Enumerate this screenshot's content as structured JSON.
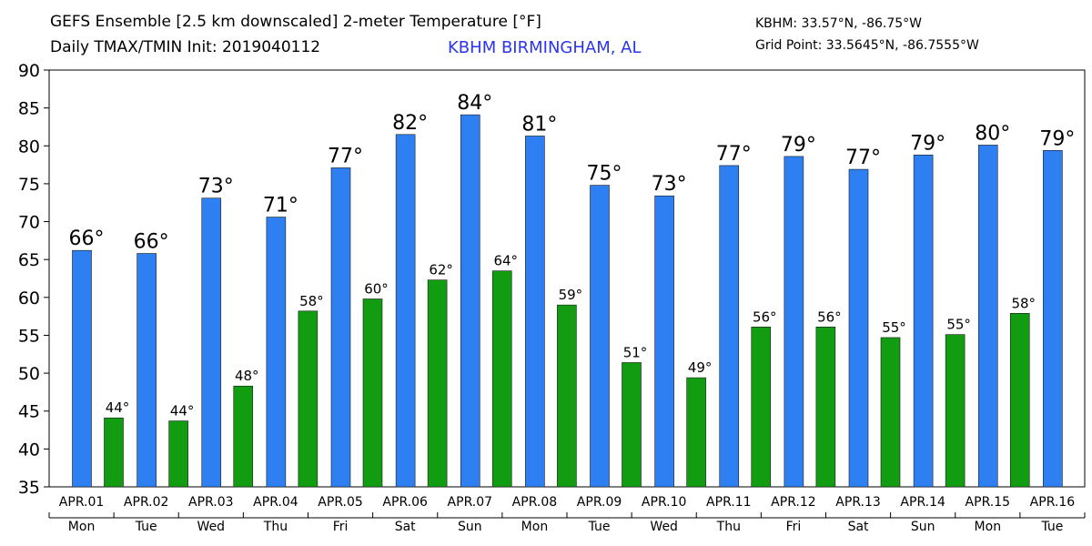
{
  "header": {
    "title_line1": "GEFS Ensemble [2.5 km downscaled] 2-meter Temperature [°F]",
    "title_line2": "Daily TMAX/TMIN Init: 2019040112",
    "station": "KBHM BIRMINGHAM, AL",
    "station_coords": "KBHM: 33.57°N, -86.75°W",
    "grid_point": "Grid Point: 33.5645°N, -86.7555°W"
  },
  "chart_data": {
    "type": "bar",
    "categories": [
      "APR.01",
      "APR.02",
      "APR.03",
      "APR.04",
      "APR.05",
      "APR.06",
      "APR.07",
      "APR.08",
      "APR.09",
      "APR.10",
      "APR.11",
      "APR.12",
      "APR.13",
      "APR.14",
      "APR.15",
      "APR.16"
    ],
    "weekdays": [
      "Mon",
      "Tue",
      "Wed",
      "Thu",
      "Fri",
      "Sat",
      "Sun",
      "Mon",
      "Tue",
      "Wed",
      "Thu",
      "Fri",
      "Sat",
      "Sun",
      "Mon",
      "Tue"
    ],
    "series": [
      {
        "key": "tmax",
        "color": "#2e7ff2",
        "values": [
          66.2,
          65.8,
          73.1,
          70.6,
          77.1,
          81.5,
          84.1,
          81.3,
          74.8,
          73.4,
          77.4,
          78.6,
          76.9,
          78.8,
          80.1,
          79.4
        ],
        "labels": [
          "66°",
          "66°",
          "73°",
          "71°",
          "77°",
          "82°",
          "84°",
          "81°",
          "75°",
          "73°",
          "77°",
          "79°",
          "77°",
          "79°",
          "80°",
          "79°"
        ]
      },
      {
        "key": "tmin",
        "color": "#119c11",
        "values": [
          44.1,
          43.7,
          48.3,
          58.2,
          59.8,
          62.3,
          63.5,
          59.0,
          51.4,
          49.4,
          56.1,
          56.1,
          54.7,
          55.1,
          57.9,
          null
        ],
        "labels": [
          "44°",
          "44°",
          "48°",
          "58°",
          "60°",
          "62°",
          "64°",
          "59°",
          "51°",
          "49°",
          "56°",
          "56°",
          "55°",
          "55°",
          "58°",
          ""
        ]
      }
    ],
    "ylim": [
      35,
      90
    ],
    "yticks": [
      "35",
      "40",
      "45",
      "50",
      "55",
      "60",
      "65",
      "70",
      "75",
      "80",
      "85",
      "90"
    ],
    "grid": false
  }
}
